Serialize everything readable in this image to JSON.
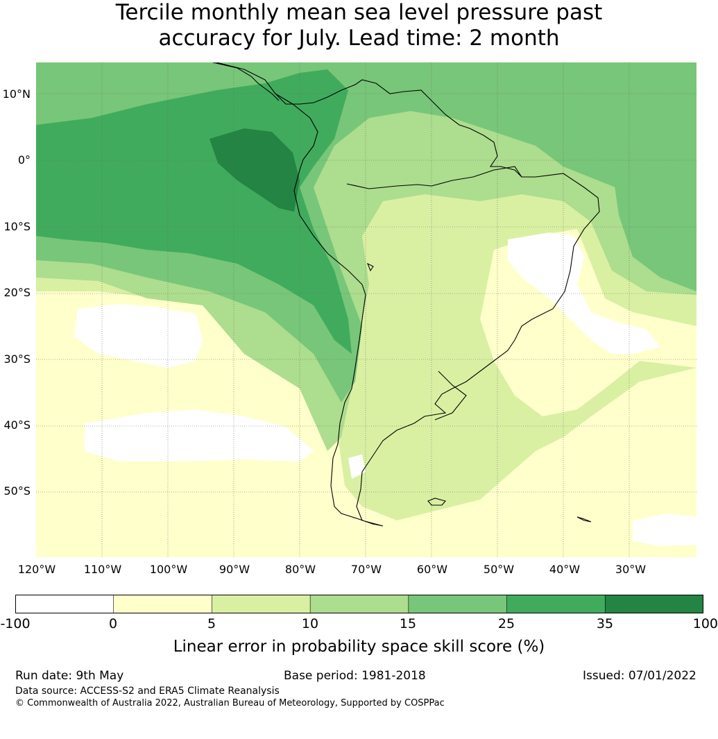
{
  "title_line1": "Tercile monthly mean sea level pressure past",
  "title_line2": "accuracy for July. Lead time: 2 month",
  "lat_labels": [
    "10°N",
    "0°",
    "10°S",
    "20°S",
    "30°S",
    "40°S",
    "50°S"
  ],
  "lon_labels": [
    "120°W",
    "110°W",
    "100°W",
    "90°W",
    "80°W",
    "70°W",
    "60°W",
    "50°W",
    "40°W",
    "30°W"
  ],
  "colorbar": {
    "ticks": [
      "-100",
      "0",
      "5",
      "10",
      "15",
      "25",
      "35",
      "100"
    ],
    "colors": [
      "#ffffff",
      "#ffffcc",
      "#d9f0a3",
      "#addd8e",
      "#78c679",
      "#41ab5d",
      "#238443"
    ],
    "label": "Linear error in probability space skill score (%)"
  },
  "footer": {
    "run_date": "Run date: 9th May",
    "base_period": "Base period: 1981-2018",
    "issued": "Issued: 07/01/2022",
    "data_source": "Data source: ACCESS-S2 and ERA5 Climate Reanalysis",
    "copyright": "© Commonwealth of Australia 2022, Australian Bureau of Meteorology, Supported by COSPPac"
  }
}
